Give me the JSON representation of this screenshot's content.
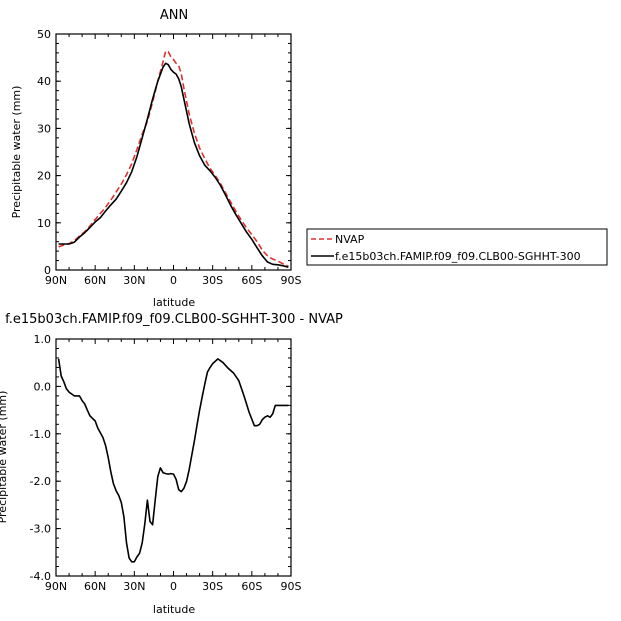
{
  "chart_data": [
    {
      "type": "line",
      "title": "ANN",
      "xlabel": "latitude",
      "ylabel": "Precipitable water (mm)",
      "x_ticks": [
        "90N",
        "60N",
        "30N",
        "0",
        "30S",
        "60S",
        "90S"
      ],
      "y_ticks": [
        "0",
        "10",
        "20",
        "30",
        "40",
        "50"
      ],
      "xlim": [
        90,
        -90
      ],
      "ylim": [
        0,
        50
      ],
      "legend": {
        "placement": "outside-right",
        "entries": [
          "NVAP",
          "f.e15b03ch.FAMIP.f09_f09.CLB00-SGHHT-300"
        ]
      },
      "series": [
        {
          "name": "NVAP",
          "color": "#e03030",
          "dash": "dashed",
          "x": [
            88,
            84,
            80,
            76,
            72,
            68,
            64,
            60,
            56,
            52,
            48,
            44,
            40,
            36,
            32,
            28,
            24,
            20,
            16,
            12,
            8,
            6,
            4,
            2,
            0,
            -2,
            -4,
            -6,
            -8,
            -12,
            -16,
            -20,
            -24,
            -28,
            -32,
            -36,
            -40,
            -44,
            -48,
            -52,
            -56,
            -60,
            -64,
            -68,
            -72,
            -76,
            -80,
            -84,
            -88
          ],
          "y": [
            4.9,
            5.3,
            5.6,
            6.2,
            7.2,
            8.1,
            9.3,
            10.7,
            12.0,
            13.3,
            14.8,
            16.5,
            18.2,
            20.2,
            22.5,
            25.5,
            28.8,
            31.5,
            35.6,
            40.0,
            44.2,
            46.4,
            46.2,
            45.2,
            44.6,
            43.8,
            43.3,
            41.5,
            38.5,
            33.0,
            29.0,
            25.8,
            23.6,
            21.5,
            20.0,
            18.3,
            16.3,
            14.3,
            12.3,
            10.5,
            8.9,
            7.5,
            6.0,
            4.2,
            3.0,
            2.3,
            1.9,
            1.3,
            0.8
          ]
        },
        {
          "name": "f.e15b03ch.FAMIP.f09_f09.CLB00-SGHHT-300",
          "color": "#000000",
          "dash": "solid",
          "x": [
            88,
            84,
            80,
            76,
            72,
            68,
            64,
            60,
            56,
            52,
            48,
            44,
            40,
            36,
            32,
            28,
            24,
            20,
            16,
            12,
            8,
            6,
            4,
            2,
            0,
            -2,
            -4,
            -6,
            -8,
            -12,
            -16,
            -20,
            -24,
            -28,
            -32,
            -36,
            -40,
            -44,
            -48,
            -52,
            -56,
            -60,
            -64,
            -68,
            -72,
            -76,
            -80,
            -84,
            -88
          ],
          "y": [
            5.5,
            5.5,
            5.5,
            5.9,
            7.0,
            7.9,
            9.0,
            10.2,
            11.1,
            12.5,
            13.8,
            15.0,
            16.7,
            18.5,
            20.8,
            24.0,
            28.0,
            32.0,
            36.2,
            40.0,
            43.0,
            43.8,
            43.5,
            42.5,
            41.9,
            41.5,
            40.5,
            38.8,
            36.2,
            31.0,
            27.0,
            24.2,
            22.2,
            21.0,
            19.6,
            17.9,
            15.8,
            13.6,
            11.6,
            9.8,
            8.0,
            6.5,
            4.7,
            3.0,
            1.7,
            1.2,
            1.1,
            0.9,
            0.6
          ]
        }
      ]
    },
    {
      "type": "line",
      "title": "f.e15b03ch.FAMIP.f09_f09.CLB00-SGHHT-300  -  NVAP",
      "xlabel": "latitude",
      "ylabel": "Precipitable water (mm)",
      "x_ticks": [
        "90N",
        "60N",
        "30N",
        "0",
        "30S",
        "60S",
        "90S"
      ],
      "y_ticks": [
        "1.0",
        "0.0",
        "-1.0",
        "-2.0",
        "-3.0",
        "-4.0"
      ],
      "xlim": [
        90,
        -90
      ],
      "ylim": [
        -4,
        1
      ],
      "series": [
        {
          "color": "#000000",
          "x": [
            88,
            86,
            84,
            82,
            80,
            76,
            72,
            70,
            68,
            66,
            64,
            60,
            58,
            56,
            54,
            52,
            50,
            48,
            46,
            44,
            42,
            40,
            38,
            36,
            34,
            32,
            30,
            28,
            26,
            24,
            22,
            20,
            18,
            16,
            14,
            12,
            10,
            8,
            6,
            4,
            2,
            0,
            -2,
            -4,
            -6,
            -8,
            -10,
            -12,
            -14,
            -16,
            -18,
            -20,
            -22,
            -24,
            -26,
            -28,
            -30,
            -34,
            -38,
            -42,
            -46,
            -50,
            -54,
            -58,
            -62,
            -64,
            -66,
            -68,
            -70,
            -72,
            -74,
            -76,
            -78,
            -80,
            -82,
            -84,
            -86,
            -88
          ],
          "y": [
            0.58,
            0.22,
            0.1,
            -0.05,
            -0.12,
            -0.2,
            -0.2,
            -0.3,
            -0.37,
            -0.5,
            -0.62,
            -0.73,
            -0.88,
            -0.98,
            -1.08,
            -1.25,
            -1.5,
            -1.8,
            -2.05,
            -2.2,
            -2.3,
            -2.45,
            -2.75,
            -3.3,
            -3.62,
            -3.7,
            -3.7,
            -3.6,
            -3.52,
            -3.3,
            -2.9,
            -2.4,
            -2.85,
            -2.92,
            -2.4,
            -1.9,
            -1.72,
            -1.82,
            -1.84,
            -1.85,
            -1.84,
            -1.85,
            -1.96,
            -2.18,
            -2.22,
            -2.15,
            -2.0,
            -1.75,
            -1.45,
            -1.15,
            -0.82,
            -0.5,
            -0.22,
            0.05,
            0.3,
            0.4,
            0.48,
            0.58,
            0.5,
            0.38,
            0.28,
            0.12,
            -0.2,
            -0.55,
            -0.83,
            -0.83,
            -0.8,
            -0.7,
            -0.65,
            -0.62,
            -0.65,
            -0.58,
            -0.4,
            -0.4,
            -0.4,
            -0.4,
            -0.4,
            -0.4
          ]
        }
      ]
    }
  ]
}
